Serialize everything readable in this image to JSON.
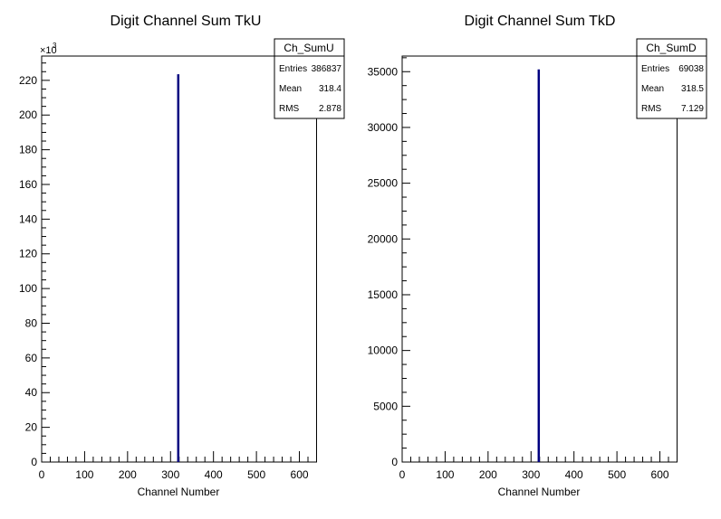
{
  "chart_data": [
    {
      "type": "bar",
      "title": "Digit Channel Sum TkU",
      "xlabel": "Channel Number",
      "ylabel": "",
      "y_exponent_label": "×10",
      "y_exponent_power": "3",
      "xlim": [
        0,
        640
      ],
      "ylim": [
        0,
        234
      ],
      "x_ticks": [
        0,
        100,
        200,
        300,
        400,
        500,
        600
      ],
      "y_ticks": [
        0,
        20,
        40,
        60,
        80,
        100,
        120,
        140,
        160,
        180,
        200,
        220
      ],
      "bars": [
        {
          "x": 318,
          "y": 223.5
        }
      ],
      "series_color": "#000080",
      "stats": {
        "name": "Ch_SumU",
        "rows": [
          {
            "label": "Entries",
            "value": "386837"
          },
          {
            "label": "Mean",
            "value": "318.4"
          },
          {
            "label": "RMS",
            "value": "2.878"
          }
        ]
      }
    },
    {
      "type": "bar",
      "title": "Digit Channel Sum TkD",
      "xlabel": "Channel Number",
      "ylabel": "",
      "xlim": [
        0,
        640
      ],
      "ylim": [
        0,
        36400
      ],
      "x_ticks": [
        0,
        100,
        200,
        300,
        400,
        500,
        600
      ],
      "y_ticks": [
        0,
        5000,
        10000,
        15000,
        20000,
        25000,
        30000,
        35000
      ],
      "bars": [
        {
          "x": 318,
          "y": 35200
        }
      ],
      "series_color": "#000080",
      "stats": {
        "name": "Ch_SumD",
        "rows": [
          {
            "label": "Entries",
            "value": "69038"
          },
          {
            "label": "Mean",
            "value": "318.5"
          },
          {
            "label": "RMS",
            "value": "7.129"
          }
        ]
      }
    }
  ]
}
